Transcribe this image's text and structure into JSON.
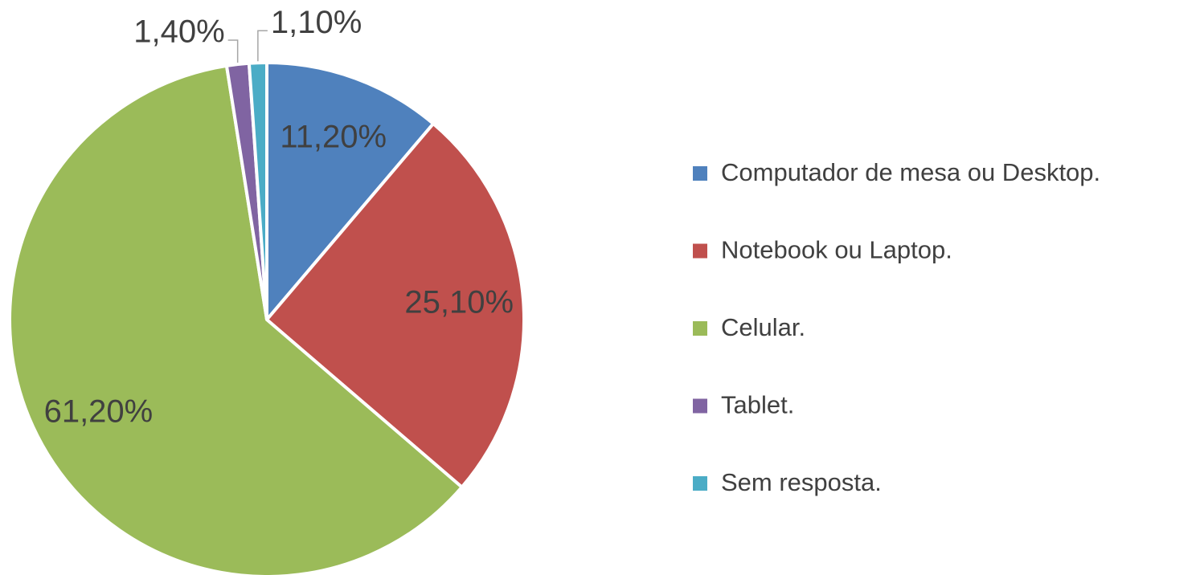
{
  "chart_data": {
    "type": "pie",
    "categories": [
      "Computador de mesa ou Desktop.",
      "Notebook ou Laptop.",
      "Celular.",
      "Tablet.",
      "Sem resposta."
    ],
    "values": [
      11.2,
      25.1,
      61.2,
      1.4,
      1.1
    ],
    "value_labels": [
      "11,20%",
      "25,10%",
      "61,20%",
      "1,40%",
      "1,10%"
    ],
    "colors": [
      "#4f81bd",
      "#c0504d",
      "#9bbb59",
      "#8064a2",
      "#4bacc6"
    ],
    "legend": "right"
  }
}
